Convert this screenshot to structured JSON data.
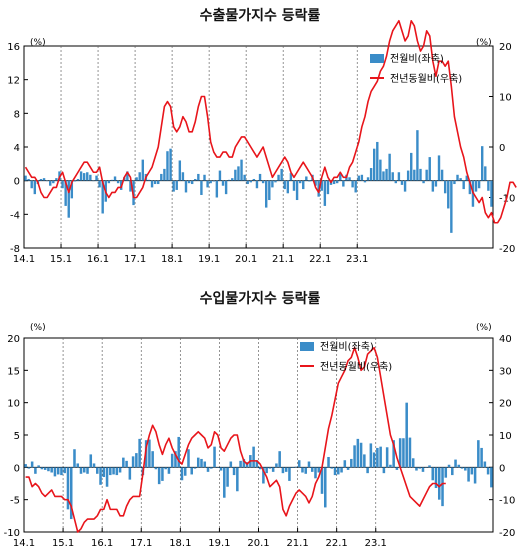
{
  "chart_data": [
    {
      "type": "bar+line",
      "title": "수출물가지수 등락률",
      "left_axis": {
        "unit": "(%)",
        "ylim": [
          -8,
          16
        ],
        "ticks": [
          "16",
          "12",
          "8",
          "4",
          "0",
          "-4",
          "-8"
        ]
      },
      "right_axis": {
        "unit": "(%)",
        "ylim": [
          -20,
          20
        ],
        "ticks": [
          "20",
          "10",
          "0",
          "-10",
          "-20"
        ]
      },
      "x_ticks": [
        "14.1",
        "15.1",
        "16.1",
        "17.1",
        "18.1",
        "19.1",
        "20.1",
        "21.1",
        "22.1",
        "23.1"
      ],
      "legend": {
        "position": "top-right",
        "entries": [
          "전월비(좌축)",
          "전년동월비(우축)"
        ]
      },
      "series": [
        {
          "name": "전월비(좌축)",
          "type": "bar",
          "axis": "left",
          "color": "#3a8cc8",
          "values": [
            0.6,
            0.2,
            -0.9,
            -1.6,
            -0.4,
            0.2,
            0.3,
            0.0,
            -0.6,
            -0.3,
            0.3,
            1.1,
            -0.9,
            -3.0,
            -4.4,
            -2.1,
            -0.1,
            0.2,
            1.1,
            0.9,
            1.0,
            0.7,
            0.0,
            0.6,
            -0.8,
            -3.9,
            -2.5,
            -0.3,
            0.1,
            0.5,
            -0.3,
            -1.1,
            0.4,
            1.1,
            -1.3,
            -2.9,
            0.4,
            1.0,
            2.5,
            0.8,
            0.1,
            -0.8,
            -0.4,
            -0.4,
            0.8,
            1.4,
            3.5,
            3.8,
            -1.3,
            -1.1,
            2.4,
            1.0,
            -1.4,
            -0.3,
            -0.4,
            0.2,
            0.8,
            -1.7,
            0.7,
            -0.8,
            -0.3,
            -0.1,
            -2.0,
            1.2,
            -0.6,
            -1.6,
            0.1,
            0.3,
            1.3,
            1.7,
            2.5,
            0.7,
            -0.4,
            -0.2,
            0.2,
            -0.9,
            0.8,
            -0.3,
            -3.2,
            -2.3,
            -0.8,
            -0.2,
            0.7,
            1.4,
            -1.0,
            -1.5,
            0.9,
            -1.2,
            -2.3,
            -0.3,
            -1.0,
            0.5,
            -0.1,
            0.7,
            -0.6,
            -1.9,
            -1.2,
            -3.0,
            -1.6,
            -0.5,
            -0.4,
            -0.3,
            0.8,
            -0.7,
            0.7,
            0.4,
            -0.8,
            -1.4,
            0.6,
            0.7,
            -0.2,
            0.4,
            1.5,
            3.8,
            4.6,
            2.5,
            1.1,
            1.4,
            3.2,
            1.0,
            -0.3,
            1.0,
            -0.5,
            -1.3,
            1.2,
            3.3,
            1.3,
            6.0,
            1.4,
            -0.3,
            1.3,
            2.8,
            -1.3,
            -0.7,
            3.0,
            1.3,
            -1.5,
            -3.3,
            -6.2,
            -0.4,
            0.7,
            0.3,
            -1.0,
            0.6,
            -1.6,
            -3.1,
            -1.3,
            -0.9,
            4.1,
            1.7,
            -1.2,
            -3.1
          ]
        },
        {
          "name": "전년동월비(우축)",
          "type": "line",
          "axis": "right",
          "color": "#e8151b",
          "values": [
            -4,
            -5,
            -6,
            -6,
            -7,
            -9,
            -10,
            -10,
            -9,
            -8,
            -8,
            -6,
            -5,
            -7,
            -9,
            -7,
            -6,
            -5,
            -4,
            -3,
            -3,
            -4,
            -5,
            -5,
            -4,
            -7,
            -9,
            -10,
            -9,
            -9,
            -8,
            -8,
            -6,
            -5,
            -6,
            -10,
            -10,
            -9,
            -8,
            -6,
            -5,
            -4,
            -2,
            0,
            4,
            8,
            9,
            8,
            4,
            3,
            4,
            6,
            5,
            3,
            3,
            5,
            8,
            10,
            10,
            6,
            1,
            -1,
            -2,
            -2,
            -1,
            -1,
            -2,
            -2,
            0,
            1,
            2,
            2,
            1,
            0,
            -1,
            -2,
            -1,
            0,
            -2,
            -4,
            -6,
            -5,
            -4,
            -3,
            -2,
            -3,
            -5,
            -6,
            -5,
            -4,
            -3,
            -4,
            -5,
            -6,
            -8,
            -9,
            -6,
            -4,
            -6,
            -7,
            -6,
            -6,
            -5,
            -6,
            -6,
            -4,
            -3,
            -1,
            1,
            4,
            6,
            9,
            11,
            12,
            13,
            15,
            16,
            18,
            21,
            23,
            24,
            25,
            23,
            21,
            22,
            25,
            24,
            21,
            19,
            20,
            23,
            22,
            17,
            14,
            17,
            17,
            16,
            17,
            12,
            6,
            3,
            0,
            -2,
            -5,
            -7,
            -9,
            -10,
            -11,
            -10,
            -13,
            -14,
            -13,
            -15,
            -15,
            -14,
            -12,
            -10,
            -7,
            -7,
            -8
          ]
        }
      ]
    },
    {
      "type": "bar+line",
      "title": "수입물가지수 등락률",
      "left_axis": {
        "unit": "(%)",
        "ylim": [
          -10,
          20
        ],
        "ticks": [
          "20",
          "15",
          "10",
          "5",
          "0",
          "-5",
          "-10"
        ]
      },
      "right_axis": {
        "unit": "(%)",
        "ylim": [
          -20,
          40
        ],
        "ticks": [
          "40",
          "30",
          "20",
          "10",
          "0",
          "-10",
          "-20"
        ]
      },
      "x_ticks": [
        "14.1",
        "15.1",
        "16.1",
        "17.1",
        "18.1",
        "19.1",
        "20.1",
        "21.1",
        "22.1",
        "23.1"
      ],
      "legend": {
        "position": "top-right",
        "entries": [
          "전월비(좌축)",
          "전년동월비(우축)"
        ]
      },
      "series": [
        {
          "name": "전월비(좌축)",
          "type": "bar",
          "axis": "left",
          "color": "#3a8cc8",
          "values": [
            0.5,
            -0.2,
            0.9,
            -1.0,
            0.3,
            -0.3,
            -0.4,
            -0.6,
            -0.8,
            -1.4,
            -1.1,
            -1.2,
            -0.9,
            -6.5,
            -8.0,
            2.8,
            0.6,
            -1.0,
            -0.8,
            -1.0,
            2.0,
            0.6,
            -1.0,
            -2.7,
            -1.5,
            -3.0,
            -1.2,
            -1.1,
            -1.2,
            -0.8,
            1.5,
            1.0,
            -1.9,
            1.7,
            2.2,
            4.4,
            -1.2,
            4.2,
            4.3,
            2.5,
            -0.3,
            -2.6,
            -2.1,
            -0.3,
            -1.0,
            2.1,
            2.5,
            4.7,
            -2.0,
            -1.3,
            2.8,
            -1.1,
            -0.2,
            1.5,
            1.3,
            0.9,
            -0.7,
            -0.2,
            3.2,
            0.0,
            -0.5,
            -4.7,
            -3.0,
            0.9,
            -1.2,
            -3.7,
            1.0,
            1.3,
            0.8,
            1.9,
            3.2,
            1.1,
            -0.3,
            -2.5,
            -0.9,
            -0.2,
            -0.7,
            0.6,
            2.5,
            -0.9,
            -0.7,
            -2.1,
            -0.1,
            0.1,
            1.1,
            -0.8,
            -1.0,
            0.9,
            -0.7,
            -1.7,
            -0.8,
            -4.1,
            -6.2,
            1.6,
            -0.2,
            -1.2,
            -1.1,
            -0.8,
            1.1,
            -0.4,
            1.3,
            3.4,
            4.4,
            3.8,
            2.0,
            -0.9,
            3.7,
            2.3,
            3.0,
            3.2,
            -0.9,
            3.1,
            0.4,
            4.2,
            -0.4,
            4.5,
            4.5,
            10.0,
            4.6,
            1.4,
            -0.5,
            -0.2,
            -0.7,
            0.0,
            0.3,
            -2.0,
            -3.2,
            -5.0,
            -6.0,
            -1.6,
            0.4,
            -1.2,
            1.2,
            0.4,
            -0.2,
            -0.5,
            -2.2,
            -1.1,
            -2.5,
            4.2,
            3.0,
            0.9,
            -1.1,
            -3.1
          ]
        },
        {
          "name": "전년동월비(우축)",
          "type": "line",
          "axis": "right",
          "color": "#e8151b",
          "values": [
            -3,
            -3,
            -6,
            -5,
            -6,
            -8,
            -9,
            -8,
            -7,
            -9,
            -9,
            -9,
            -10,
            -10,
            -12,
            -16,
            -20,
            -19,
            -17,
            -16,
            -16,
            -16,
            -15,
            -13,
            -13,
            -10,
            -13,
            -13,
            -13,
            -15,
            -15,
            -12,
            -10,
            -9,
            -9,
            -9,
            -2,
            6,
            10,
            13,
            11,
            7,
            4,
            7,
            9,
            6,
            4,
            2,
            1,
            4,
            7,
            9,
            10,
            11,
            10,
            9,
            6,
            7,
            11,
            10,
            6,
            5,
            7,
            9,
            10,
            10,
            5,
            2,
            1,
            2,
            2,
            2,
            1,
            -1,
            -3,
            -6,
            -5,
            -4,
            -6,
            -13,
            -15,
            -12,
            -10,
            -8,
            -7,
            -8,
            -9,
            -11,
            -9,
            -5,
            -3,
            0,
            6,
            12,
            16,
            21,
            26,
            28,
            30,
            33,
            34,
            37,
            34,
            30,
            31,
            35,
            36,
            37,
            34,
            28,
            22,
            16,
            10,
            7,
            3,
            0,
            -3,
            -6,
            -9,
            -10,
            -11,
            -12,
            -10,
            -8,
            -6,
            -5,
            -5,
            -6,
            -5,
            -5
          ]
        }
      ]
    }
  ]
}
